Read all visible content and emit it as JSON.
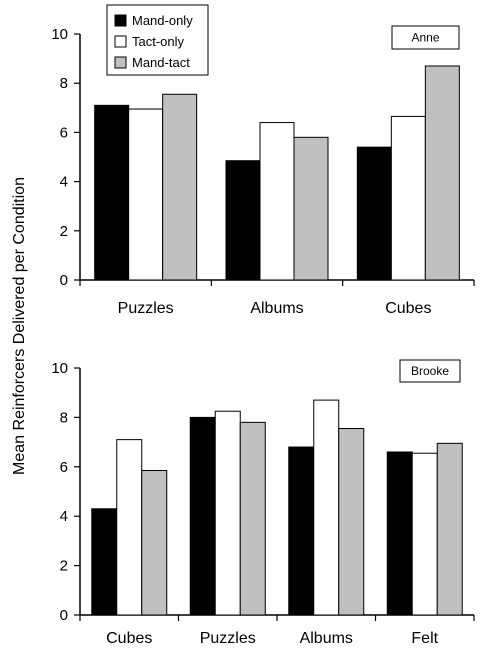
{
  "chart_data": {
    "type": "bar",
    "ylabel": "Mean Reinforcers Delivered per Condition",
    "legend": {
      "placement": "top-left",
      "entries": [
        {
          "name": "Mand-only",
          "color": "#000000"
        },
        {
          "name": "Tact-only",
          "color": "#ffffff"
        },
        {
          "name": "Mand-tact",
          "color": "#c0c0c0"
        }
      ]
    },
    "grid": false,
    "panels": [
      {
        "label": "Anne",
        "categories": [
          "Puzzles",
          "Albums",
          "Cubes"
        ],
        "ylim": [
          0,
          10
        ],
        "yticks": [
          0,
          2,
          4,
          6,
          8,
          10
        ],
        "series": [
          {
            "name": "Mand-only",
            "values": [
              7.1,
              4.85,
              5.4
            ]
          },
          {
            "name": "Tact-only",
            "values": [
              6.95,
              6.4,
              6.65
            ]
          },
          {
            "name": "Mand-tact",
            "values": [
              7.55,
              5.8,
              8.7
            ]
          }
        ]
      },
      {
        "label": "Brooke",
        "categories": [
          "Cubes",
          "Puzzles",
          "Albums",
          "Felt"
        ],
        "ylim": [
          0,
          10
        ],
        "yticks": [
          0,
          2,
          4,
          6,
          8,
          10
        ],
        "series": [
          {
            "name": "Mand-only",
            "values": [
              4.3,
              8.0,
              6.8,
              6.6
            ]
          },
          {
            "name": "Tact-only",
            "values": [
              7.1,
              8.25,
              8.7,
              6.55
            ]
          },
          {
            "name": "Mand-tact",
            "values": [
              5.85,
              7.8,
              7.55,
              6.95
            ]
          }
        ]
      }
    ]
  }
}
